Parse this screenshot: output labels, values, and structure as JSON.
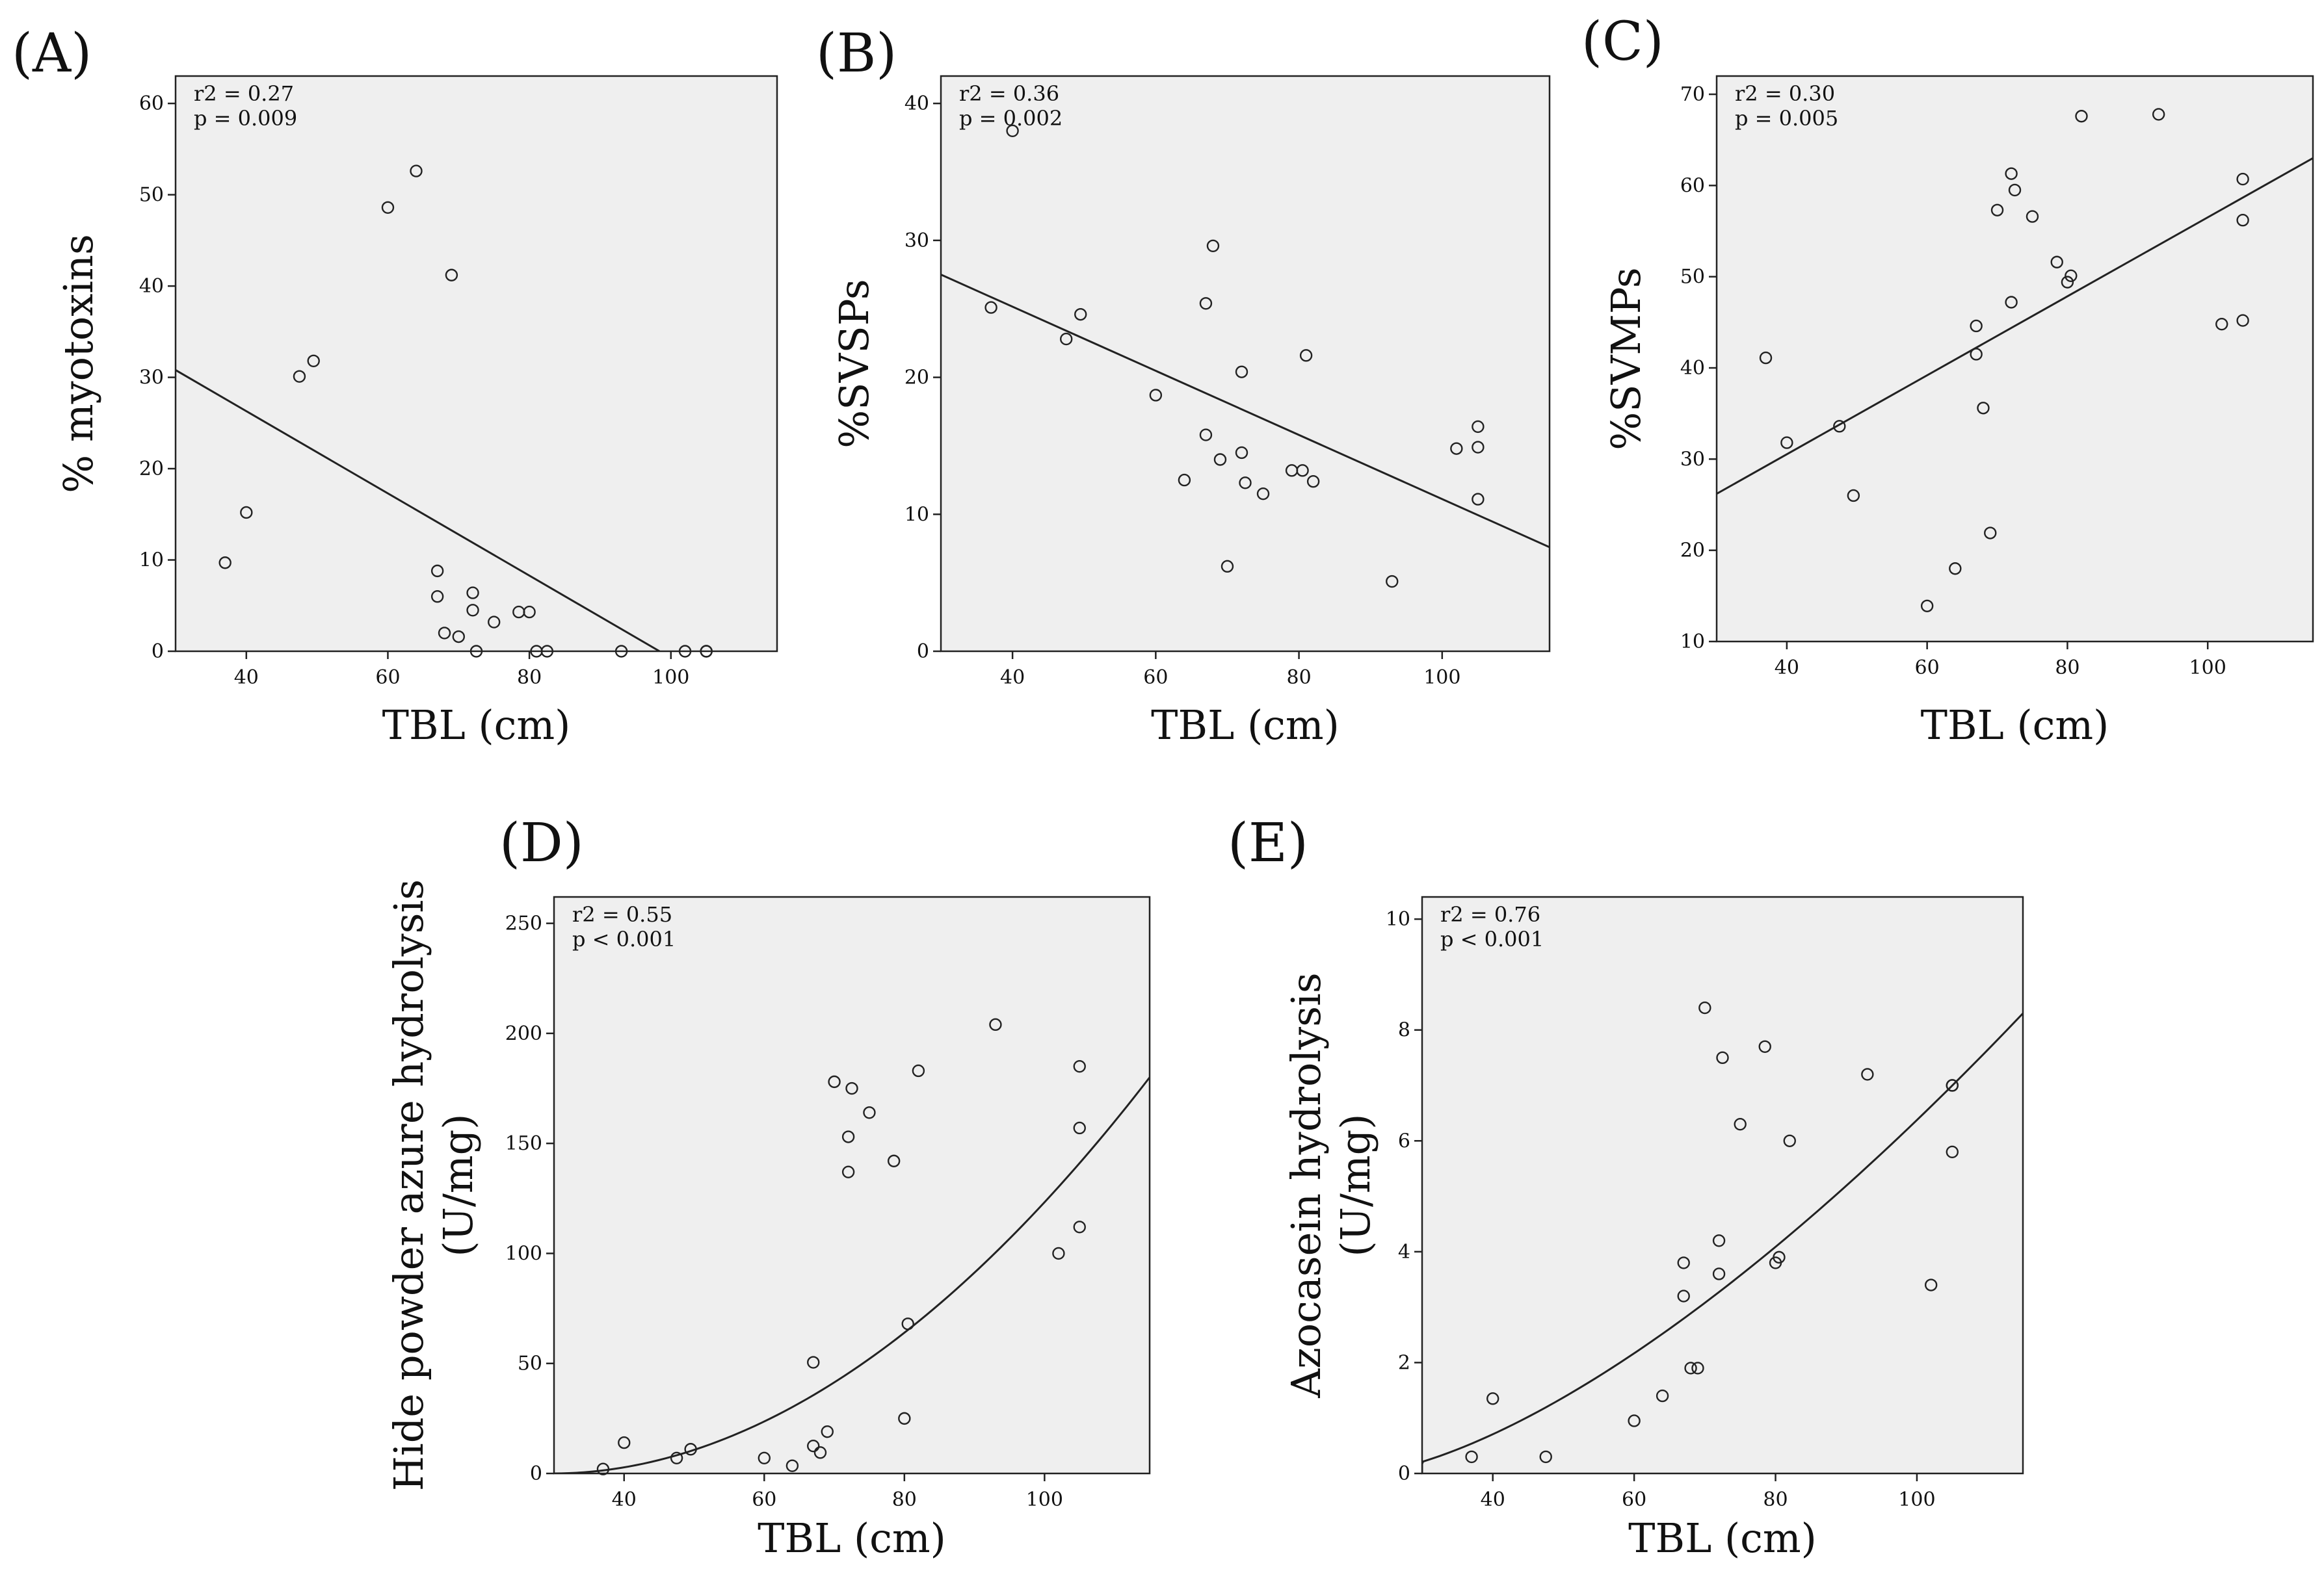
{
  "chart_data": [
    {
      "id": "A",
      "type": "scatter",
      "panel_label": "(A)",
      "xlabel": "TBL (cm)",
      "ylabel": [
        "% myotoxins"
      ],
      "xlim": [
        30,
        115
      ],
      "ylim": [
        0,
        63
      ],
      "xticks": [
        40,
        60,
        80,
        100
      ],
      "yticks": [
        0,
        10,
        20,
        30,
        40,
        50,
        60
      ],
      "stats": [
        "r2 = 0.27",
        "p = 0.009"
      ],
      "fit": {
        "kind": "linear",
        "x": [
          30,
          98.4
        ],
        "y": [
          30.8,
          0
        ]
      },
      "points": [
        [
          37,
          9.7
        ],
        [
          40,
          15.2
        ],
        [
          47.5,
          30.1
        ],
        [
          49.5,
          31.8
        ],
        [
          60,
          48.6
        ],
        [
          64,
          52.6
        ],
        [
          69,
          41.2
        ],
        [
          67,
          8.8
        ],
        [
          67,
          6.0
        ],
        [
          68,
          2.0
        ],
        [
          70,
          1.6
        ],
        [
          72,
          6.4
        ],
        [
          72,
          4.5
        ],
        [
          72.5,
          0
        ],
        [
          75,
          3.2
        ],
        [
          78.5,
          4.3
        ],
        [
          80,
          4.3
        ],
        [
          81,
          0
        ],
        [
          82.5,
          0
        ],
        [
          93,
          0
        ],
        [
          102,
          0
        ],
        [
          105,
          0
        ],
        [
          105,
          0
        ]
      ]
    },
    {
      "id": "B",
      "type": "scatter",
      "panel_label": "(B)",
      "xlabel": "TBL (cm)",
      "ylabel": [
        "%SVSPs"
      ],
      "xlim": [
        30,
        115
      ],
      "ylim": [
        0,
        42
      ],
      "xticks": [
        40,
        60,
        80,
        100
      ],
      "yticks": [
        0,
        10,
        20,
        30,
        40
      ],
      "stats": [
        "r2 = 0.36",
        "p = 0.002"
      ],
      "fit": {
        "kind": "linear",
        "x": [
          30,
          115
        ],
        "y": [
          27.5,
          7.6
        ]
      },
      "points": [
        [
          37,
          25.1
        ],
        [
          40,
          38.0
        ],
        [
          47.5,
          22.8
        ],
        [
          49.5,
          24.6
        ],
        [
          60,
          18.7
        ],
        [
          64,
          12.5
        ],
        [
          67,
          25.4
        ],
        [
          68,
          29.6
        ],
        [
          67,
          15.8
        ],
        [
          69,
          14.0
        ],
        [
          70,
          6.2
        ],
        [
          72,
          20.4
        ],
        [
          72,
          14.5
        ],
        [
          72.5,
          12.3
        ],
        [
          75,
          11.5
        ],
        [
          79,
          13.2
        ],
        [
          80.5,
          13.2
        ],
        [
          81,
          21.6
        ],
        [
          82,
          12.4
        ],
        [
          93,
          5.1
        ],
        [
          102,
          14.8
        ],
        [
          105,
          16.4
        ],
        [
          105,
          14.9
        ],
        [
          105,
          11.1
        ]
      ]
    },
    {
      "id": "C",
      "type": "scatter",
      "panel_label": "(C)",
      "xlabel": "TBL (cm)",
      "ylabel": [
        "%SVMPs"
      ],
      "xlim": [
        30,
        115
      ],
      "ylim": [
        10,
        72
      ],
      "xticks": [
        40,
        60,
        80,
        100
      ],
      "yticks": [
        10,
        20,
        30,
        40,
        50,
        60,
        70
      ],
      "stats": [
        "r2 = 0.30",
        "p = 0.005"
      ],
      "fit": {
        "kind": "linear",
        "x": [
          30,
          115
        ],
        "y": [
          26.2,
          63.0
        ]
      },
      "points": [
        [
          37,
          41.1
        ],
        [
          40,
          31.8
        ],
        [
          47.5,
          33.6
        ],
        [
          49.5,
          26.0
        ],
        [
          60,
          13.9
        ],
        [
          64,
          18.0
        ],
        [
          67,
          44.6
        ],
        [
          67,
          41.5
        ],
        [
          68,
          35.6
        ],
        [
          69,
          21.9
        ],
        [
          70,
          57.3
        ],
        [
          72,
          61.3
        ],
        [
          72.5,
          59.5
        ],
        [
          72,
          47.2
        ],
        [
          75,
          56.6
        ],
        [
          78.5,
          51.6
        ],
        [
          80,
          49.4
        ],
        [
          80.5,
          50.1
        ],
        [
          82,
          67.6
        ],
        [
          93,
          67.8
        ],
        [
          102,
          44.8
        ],
        [
          105,
          60.7
        ],
        [
          105,
          56.2
        ],
        [
          105,
          45.2
        ]
      ]
    },
    {
      "id": "D",
      "type": "scatter",
      "panel_label": "(D)",
      "xlabel": "TBL (cm)",
      "ylabel": [
        "Hide powder azure hydrolysis",
        "(U/mg)"
      ],
      "xlim": [
        30,
        115
      ],
      "ylim": [
        0,
        262
      ],
      "xticks": [
        40,
        60,
        80,
        100
      ],
      "yticks": [
        0,
        50,
        100,
        150,
        200,
        250
      ],
      "stats": [
        "r2 = 0.55",
        "p < 0.001"
      ],
      "fit": {
        "kind": "power",
        "x0": 30,
        "x1": 115,
        "y_at_x1": 180,
        "exponent": 1.95
      },
      "points": [
        [
          37,
          2
        ],
        [
          40,
          14
        ],
        [
          47.5,
          7
        ],
        [
          49.5,
          11
        ],
        [
          60,
          7
        ],
        [
          64,
          3.5
        ],
        [
          67,
          50.5
        ],
        [
          67,
          12.5
        ],
        [
          68,
          9.5
        ],
        [
          69,
          19
        ],
        [
          70,
          178
        ],
        [
          72,
          153
        ],
        [
          72,
          137
        ],
        [
          72.5,
          175
        ],
        [
          75,
          164
        ],
        [
          78.5,
          142
        ],
        [
          80,
          25
        ],
        [
          80.5,
          68
        ],
        [
          82,
          183
        ],
        [
          93,
          204
        ],
        [
          102,
          100
        ],
        [
          105,
          185
        ],
        [
          105,
          157
        ],
        [
          105,
          112
        ]
      ]
    },
    {
      "id": "E",
      "type": "scatter",
      "panel_label": "(E)",
      "xlabel": "TBL (cm)",
      "ylabel": [
        "Azocasein hydrolysis",
        "(U/mg)"
      ],
      "xlim": [
        30,
        115
      ],
      "ylim": [
        0,
        10.4
      ],
      "xticks": [
        40,
        60,
        80,
        100
      ],
      "yticks": [
        0,
        2,
        4,
        6,
        8,
        10
      ],
      "stats": [
        "r2 = 0.76",
        "p < 0.001"
      ],
      "fit": {
        "kind": "power",
        "x0": 22,
        "x1": 115,
        "y_at_x1": 8.3,
        "exponent": 1.5
      },
      "points": [
        [
          37,
          0.3
        ],
        [
          40,
          1.35
        ],
        [
          47.5,
          0.3
        ],
        [
          60,
          0.95
        ],
        [
          64,
          1.4
        ],
        [
          67,
          3.8
        ],
        [
          67,
          3.2
        ],
        [
          68,
          1.9
        ],
        [
          69,
          1.9
        ],
        [
          70,
          8.4
        ],
        [
          72,
          4.2
        ],
        [
          72,
          3.6
        ],
        [
          72.5,
          7.5
        ],
        [
          75,
          6.3
        ],
        [
          78.5,
          7.7
        ],
        [
          80,
          3.8
        ],
        [
          80.5,
          3.9
        ],
        [
          82,
          6.0
        ],
        [
          93,
          7.2
        ],
        [
          102,
          3.4
        ],
        [
          105,
          7.0
        ],
        [
          105,
          7.0
        ],
        [
          105,
          5.8
        ]
      ]
    }
  ]
}
